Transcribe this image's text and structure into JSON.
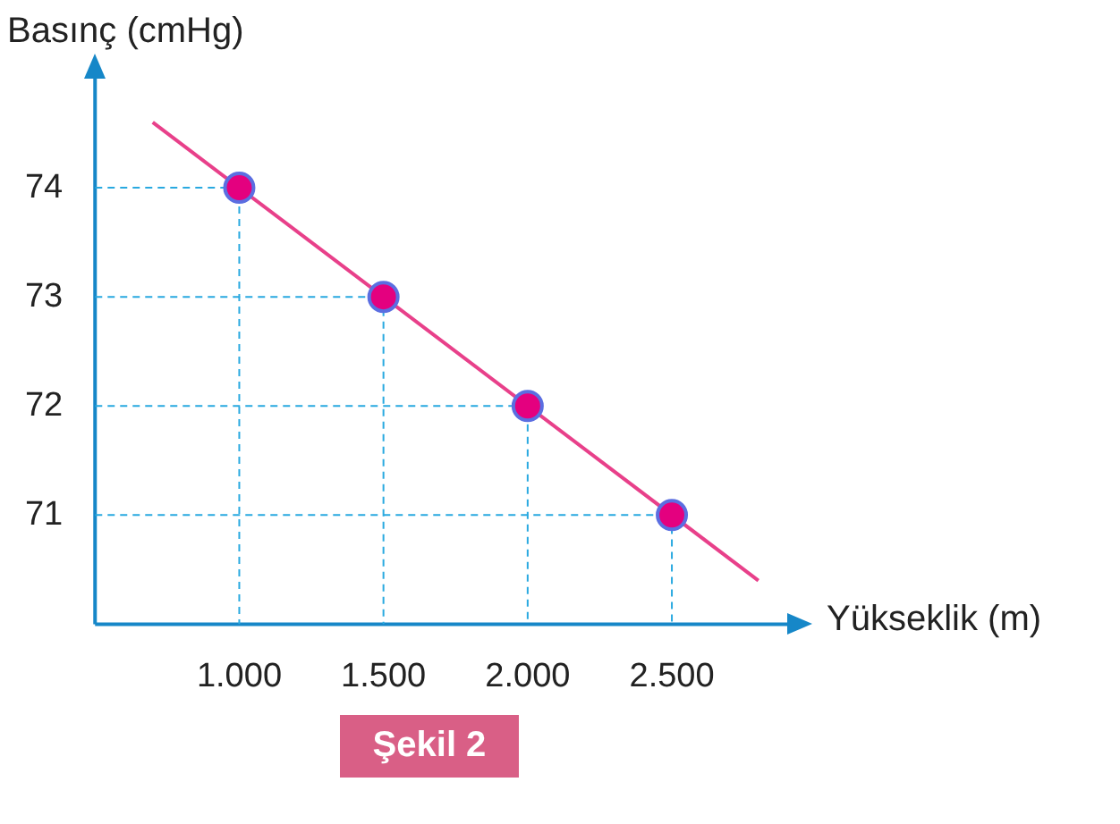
{
  "chart_data": {
    "type": "scatter",
    "xlabel": "Yükseklik (m)",
    "ylabel": "Basınç (cmHg)",
    "x": [
      1000,
      1500,
      2000,
      2500
    ],
    "series": [
      {
        "color": "#e4007f",
        "values": [
          74,
          73,
          72,
          71
        ],
        "marker": "circle"
      },
      {
        "type": "line",
        "color": "#e8408a",
        "x": [
          700,
          2800
        ],
        "values": [
          74.6,
          70.4
        ],
        "marker": "none"
      },
      {
        "type": "line",
        "color": "#29a9e0",
        "x": [
          500,
          1000,
          1000
        ],
        "values": [
          74,
          74,
          70
        ],
        "marker": "none",
        "line_style": "dashed"
      },
      {
        "type": "line",
        "color": "#29a9e0",
        "x": [
          500,
          1500,
          1500
        ],
        "values": [
          73,
          73,
          70
        ],
        "marker": "none",
        "line_style": "dashed"
      },
      {
        "type": "line",
        "color": "#29a9e0",
        "x": [
          500,
          2000,
          2000
        ],
        "values": [
          72,
          72,
          70
        ],
        "marker": "none",
        "line_style": "dashed"
      },
      {
        "type": "line",
        "color": "#29a9e0",
        "x": [
          500,
          2500,
          2500
        ],
        "values": [
          71,
          71,
          70
        ],
        "marker": "none",
        "line_style": "dashed"
      }
    ],
    "xlim": [
      500,
      2900
    ],
    "xticks": [
      {
        "value": 1000,
        "label": "1.000"
      },
      {
        "value": 1500,
        "label": "1.500"
      },
      {
        "value": 2000,
        "label": "2.000"
      },
      {
        "value": 2500,
        "label": "2.500"
      }
    ],
    "ylim": [
      70,
      75
    ],
    "yticks": [
      71,
      72,
      73,
      74
    ],
    "legend": false,
    "annotations": [
      "Şekil 2"
    ]
  }
}
